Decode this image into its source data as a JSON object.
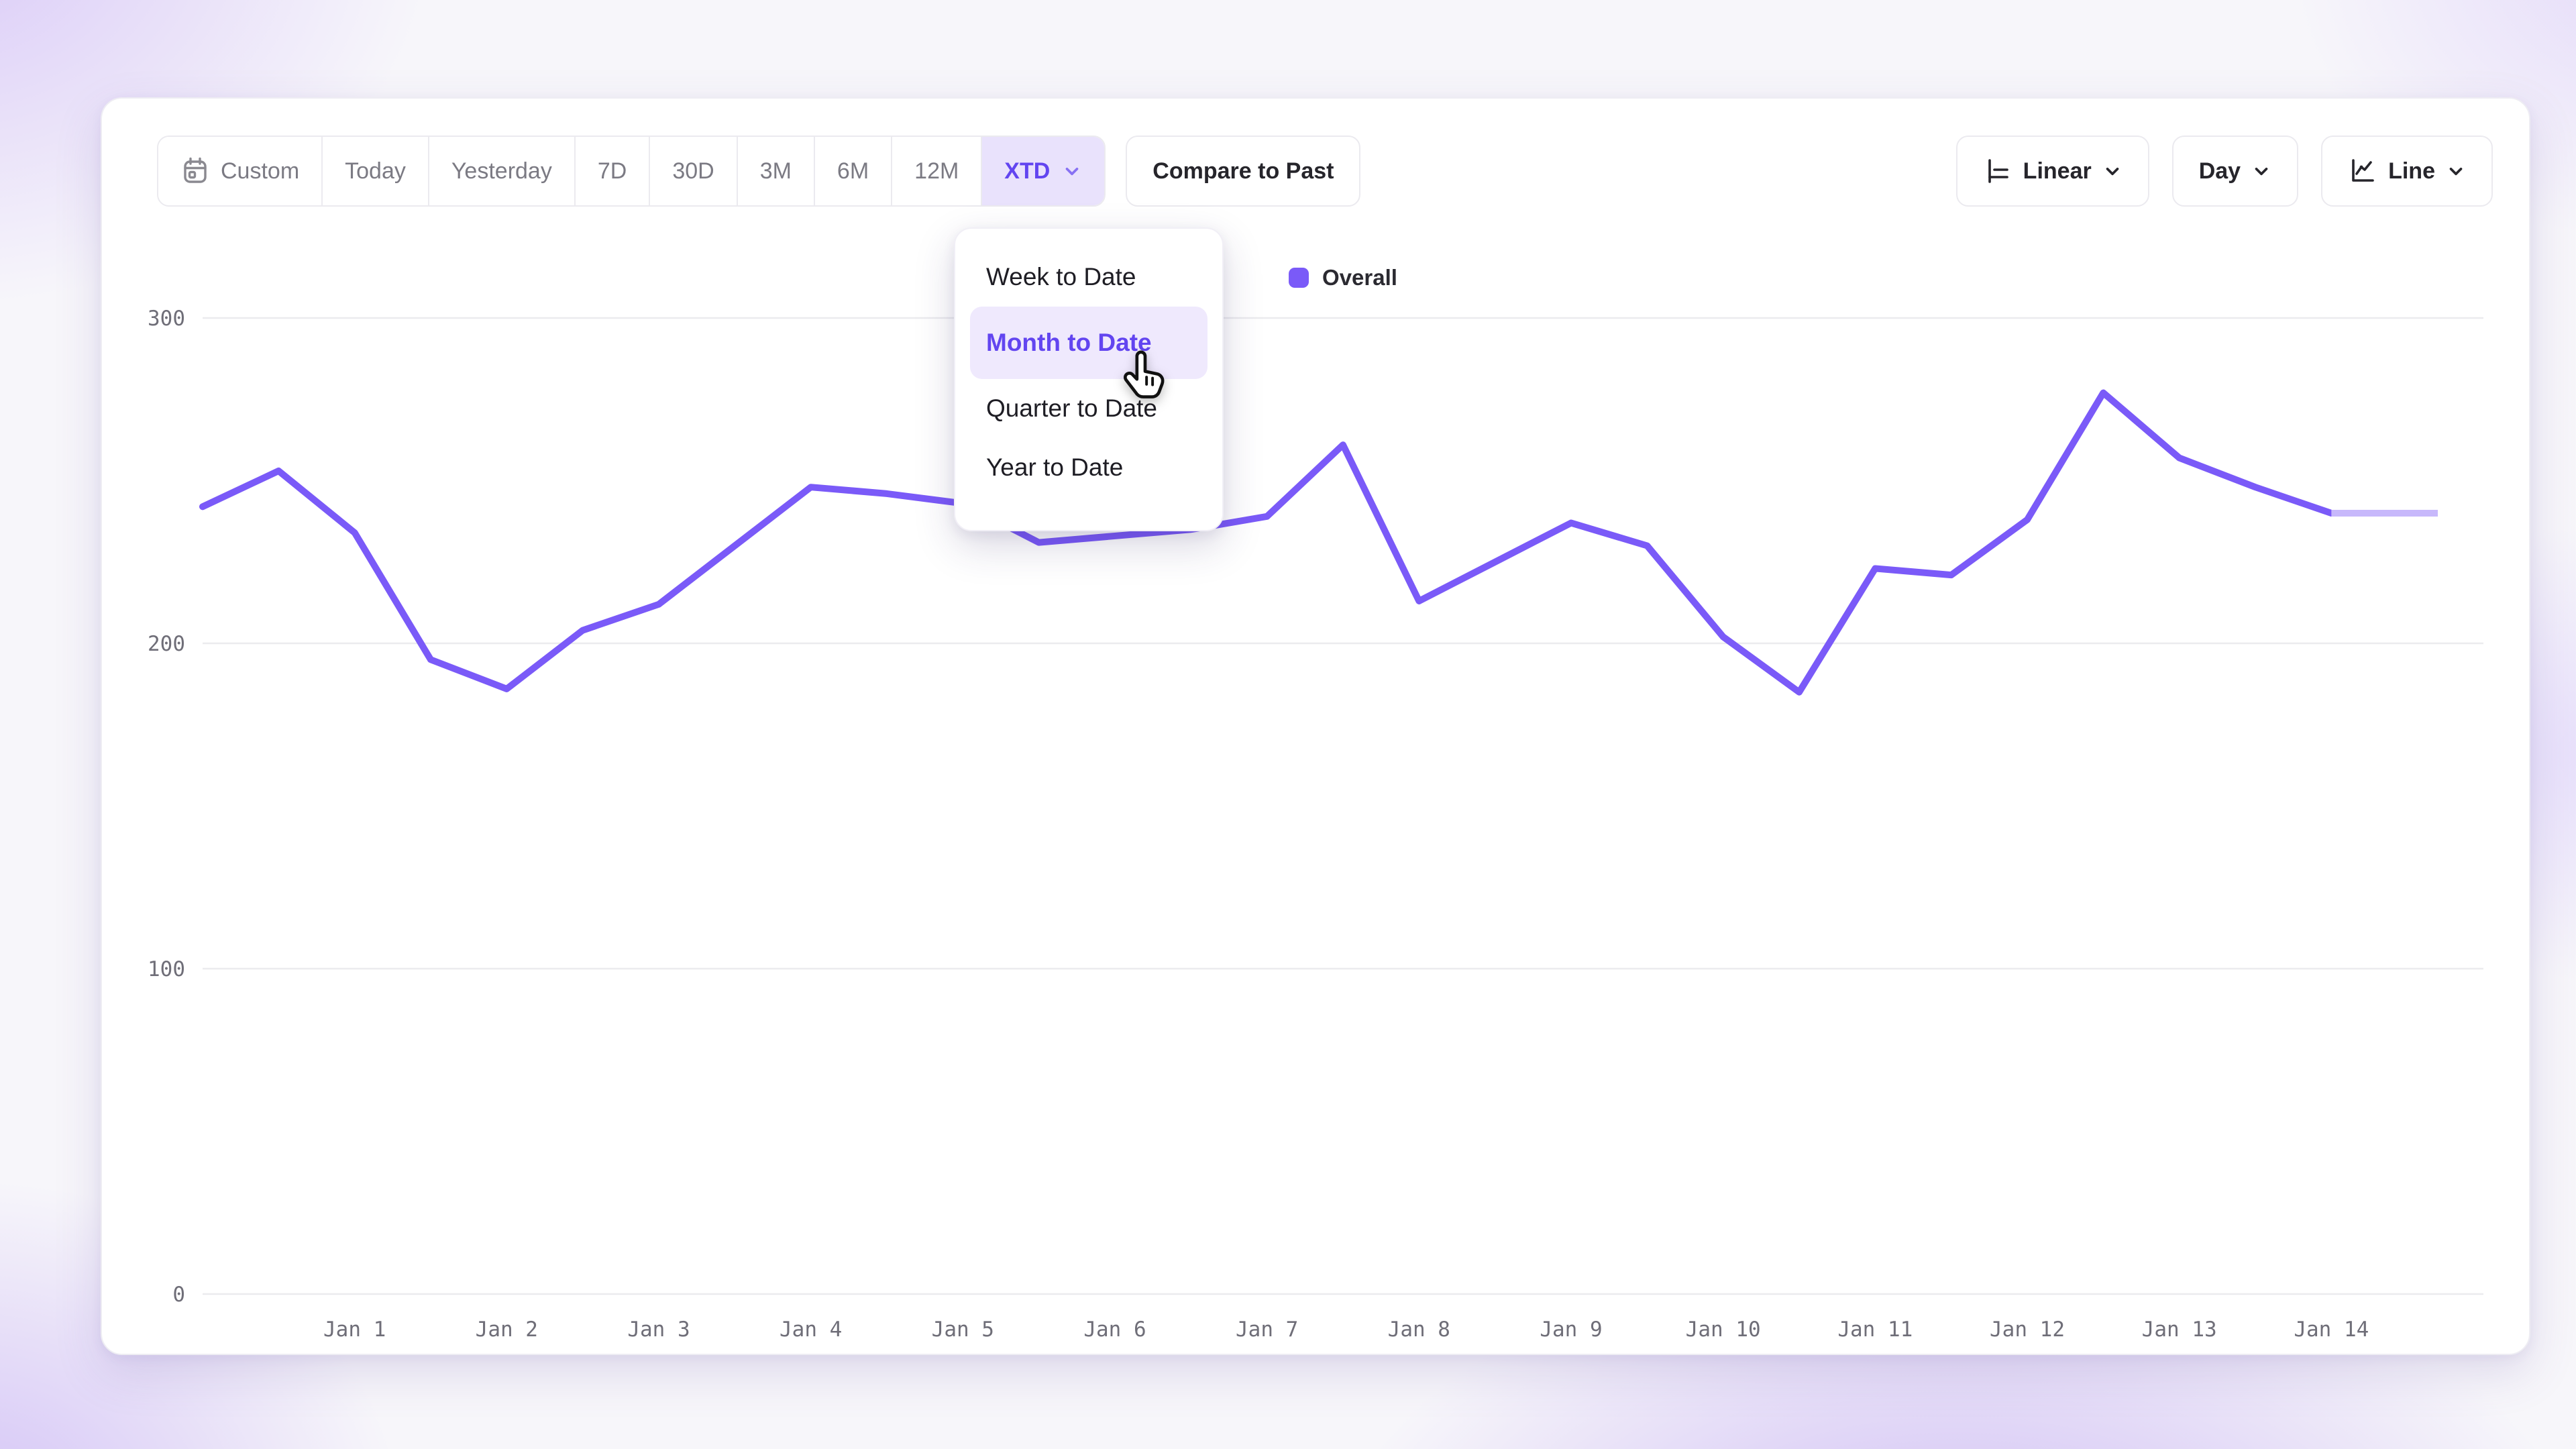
{
  "accent": "#7a5af8",
  "toolbar": {
    "presets": [
      {
        "label": "Custom",
        "icon": "calendar",
        "active": false
      },
      {
        "label": "Today",
        "active": false
      },
      {
        "label": "Yesterday",
        "active": false
      },
      {
        "label": "7D",
        "active": false
      },
      {
        "label": "30D",
        "active": false
      },
      {
        "label": "3M",
        "active": false
      },
      {
        "label": "6M",
        "active": false
      },
      {
        "label": "12M",
        "active": false
      },
      {
        "label": "XTD",
        "active": true,
        "has_chevron": true
      }
    ],
    "compare_label": "Compare to Past",
    "scale_label": "Linear",
    "granularity_label": "Day",
    "chart_type_label": "Line"
  },
  "dropdown": {
    "items": [
      {
        "label": "Week to Date",
        "active": false
      },
      {
        "label": "Month to Date",
        "active": true
      },
      {
        "label": "Quarter to Date",
        "active": false
      },
      {
        "label": "Year to Date",
        "active": false
      }
    ]
  },
  "legend": {
    "label": "Overall",
    "color": "#7a5af8"
  },
  "chart_data": {
    "type": "line",
    "x_unit": "days since Dec 31",
    "xlim": [
      0,
      15
    ],
    "ylim": [
      0,
      300
    ],
    "grid": "horizontal",
    "legend_position": "top-center",
    "y_ticks": [
      0,
      100,
      200,
      300
    ],
    "x_ticks": [
      {
        "x": 1,
        "label": "Jan 1"
      },
      {
        "x": 2,
        "label": "Jan 2"
      },
      {
        "x": 3,
        "label": "Jan 3"
      },
      {
        "x": 4,
        "label": "Jan 4"
      },
      {
        "x": 5,
        "label": "Jan 5"
      },
      {
        "x": 6,
        "label": "Jan 6"
      },
      {
        "x": 7,
        "label": "Jan 7"
      },
      {
        "x": 8,
        "label": "Jan 8"
      },
      {
        "x": 9,
        "label": "Jan 9"
      },
      {
        "x": 10,
        "label": "Jan 10"
      },
      {
        "x": 11,
        "label": "Jan 11"
      },
      {
        "x": 12,
        "label": "Jan 12"
      },
      {
        "x": 13,
        "label": "Jan 13"
      },
      {
        "x": 14,
        "label": "Jan 14"
      }
    ],
    "series": [
      {
        "name": "Overall",
        "color": "#7a5af8",
        "points": [
          [
            0,
            242
          ],
          [
            0.5,
            253
          ],
          [
            1,
            234
          ],
          [
            1.5,
            195
          ],
          [
            2,
            186
          ],
          [
            2.5,
            204
          ],
          [
            3,
            212
          ],
          [
            3.5,
            230
          ],
          [
            4,
            248
          ],
          [
            4.5,
            246
          ],
          [
            5,
            243
          ],
          [
            5.5,
            231
          ],
          [
            6,
            233
          ],
          [
            6.5,
            235
          ],
          [
            7,
            239
          ],
          [
            7.5,
            261
          ],
          [
            8,
            213
          ],
          [
            8.5,
            225
          ],
          [
            9,
            237
          ],
          [
            9.5,
            230
          ],
          [
            10,
            202
          ],
          [
            10.5,
            185
          ],
          [
            11,
            223
          ],
          [
            11.5,
            221
          ],
          [
            12,
            238
          ],
          [
            12.5,
            277
          ],
          [
            13,
            257
          ],
          [
            13.5,
            248
          ],
          [
            14,
            240
          ]
        ]
      }
    ],
    "projection": {
      "points": [
        [
          14,
          240
        ],
        [
          14.7,
          240
        ]
      ],
      "color": "#c7b8fb"
    }
  }
}
